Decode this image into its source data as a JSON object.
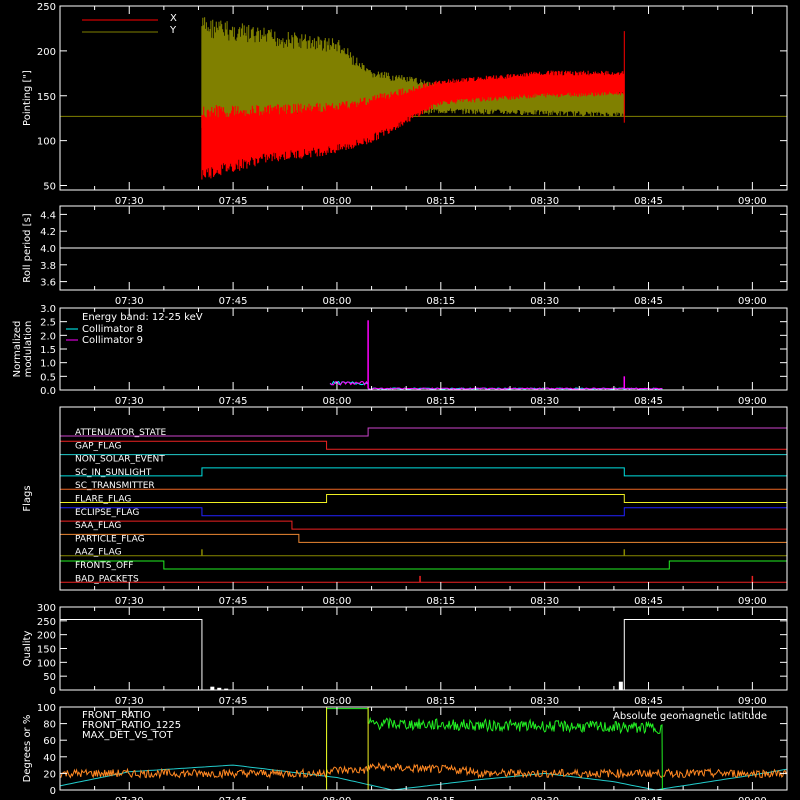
{
  "chart_data": [
    {
      "type": "line",
      "id": "pointing",
      "ylabel": "Pointing [\"]",
      "ylim": [
        45,
        250
      ],
      "yticks": [
        50,
        100,
        150,
        200,
        250
      ],
      "xticks": [
        "07:30",
        "07:45",
        "08:00",
        "08:15",
        "08:30",
        "08:45",
        "09:00"
      ],
      "xlim": [
        "07:20",
        "09:05"
      ],
      "legend": [
        "X",
        "Y"
      ],
      "series": [
        {
          "name": "X",
          "color": "#ff0000",
          "envelope": {
            "t": [
              "07:40.5",
              "07:50",
              "08:00",
              "08:04.5",
              "08:15",
              "08:30",
              "08:41.5"
            ],
            "upper": [
              140,
              140,
              143,
              150,
              168,
              178,
              178
            ],
            "lower": [
              55,
              75,
              85,
              95,
              140,
              148,
              150
            ]
          }
        },
        {
          "name": "Y",
          "color": "#808000",
          "envelope": {
            "t": [
              "07:40.5",
              "07:50",
              "08:00",
              "08:04.5",
              "08:15",
              "08:30",
              "08:41.5"
            ],
            "upper": [
              240,
              225,
              215,
              180,
              165,
              160,
              158
            ],
            "lower": [
              100,
              110,
              118,
              125,
              130,
              128,
              126
            ]
          }
        }
      ],
      "baseline": 127
    },
    {
      "type": "line",
      "id": "roll",
      "ylabel": "Roll period [s]",
      "ylim": [
        3.5,
        4.5
      ],
      "yticks": [
        "3.6",
        "3.8",
        "4.0",
        "4.2",
        "4.4"
      ],
      "xticks": [
        "07:30",
        "07:45",
        "08:00",
        "08:15",
        "08:30",
        "08:45",
        "09:00"
      ],
      "series": [
        {
          "name": "",
          "color": "#ffffff",
          "value": 4.0
        }
      ]
    },
    {
      "type": "line",
      "id": "modulation",
      "ylabel": [
        "Normalized",
        "modulation"
      ],
      "ylim": [
        0,
        3.0
      ],
      "yticks": [
        "0.0",
        "0.5",
        "1.0",
        "1.5",
        "2.0",
        "2.5",
        "3.0"
      ],
      "xticks": [
        "07:30",
        "07:45",
        "08:00",
        "08:15",
        "08:30",
        "08:45",
        "09:00"
      ],
      "legend_title": "Energy band: 12-25 keV",
      "series": [
        {
          "name": "Collimator 8",
          "color": "#00ffff"
        },
        {
          "name": "Collimator 9",
          "color": "#ff00ff"
        }
      ],
      "segments": [
        {
          "t0": "07:59",
          "t1": "08:04.5",
          "level": 0.25
        },
        {
          "t0": "08:04.5",
          "t1": "08:47",
          "level": 0.05
        }
      ],
      "spikes": [
        {
          "t": "08:04.5",
          "value": 2.55
        },
        {
          "t": "08:41.5",
          "value": 0.5
        }
      ]
    },
    {
      "type": "line",
      "id": "flags",
      "ylabel": "Flags",
      "xticks": [
        "07:30",
        "07:45",
        "08:00",
        "08:15",
        "08:30",
        "08:45",
        "09:00"
      ],
      "flags": [
        {
          "name": "ATTENUATOR_STATE",
          "color": "#cc44cc",
          "steps": [
            [
              "07:20",
              0
            ],
            [
              "08:04.5",
              1
            ]
          ]
        },
        {
          "name": "GAP_FLAG",
          "color": "#ee2222",
          "steps": [
            [
              "07:20",
              1
            ],
            [
              "07:58.5",
              0
            ]
          ]
        },
        {
          "name": "NON_SOLAR_EVENT",
          "color": "#22cccc",
          "steps": [
            [
              "07:20",
              1
            ]
          ]
        },
        {
          "name": "SC_IN_SUNLIGHT",
          "color": "#00e0e0",
          "steps": [
            [
              "07:20",
              0
            ],
            [
              "07:40.5",
              1
            ],
            [
              "08:41.5",
              0
            ]
          ]
        },
        {
          "name": "SC_TRANSMITTER",
          "color": "#ee6622",
          "steps": [
            [
              "07:20",
              0
            ]
          ]
        },
        {
          "name": "FLARE_FLAG",
          "color": "#eeee22",
          "steps": [
            [
              "07:20",
              0
            ],
            [
              "07:58.5",
              1
            ],
            [
              "08:41.5",
              0
            ]
          ]
        },
        {
          "name": "ECLIPSE_FLAG",
          "color": "#2222ff",
          "steps": [
            [
              "07:20",
              1
            ],
            [
              "07:40.5",
              0
            ],
            [
              "08:41.5",
              1
            ]
          ]
        },
        {
          "name": "SAA_FLAG",
          "color": "#ee2222",
          "steps": [
            [
              "07:20",
              1
            ],
            [
              "07:53.5",
              0
            ]
          ]
        },
        {
          "name": "PARTICLE_FLAG",
          "color": "#ee8833",
          "steps": [
            [
              "07:20",
              1
            ],
            [
              "07:54.5",
              0
            ]
          ]
        },
        {
          "name": "AAZ_FLAG",
          "color": "#888800",
          "steps": [
            [
              "07:20",
              0
            ]
          ],
          "blips": [
            "07:40.5",
            "08:41.5"
          ]
        },
        {
          "name": "FRONTS_OFF",
          "color": "#22ee22",
          "steps": [
            [
              "07:20",
              1
            ],
            [
              "07:35",
              0
            ],
            [
              "08:48",
              1
            ]
          ]
        },
        {
          "name": "BAD_PACKETS",
          "color": "#ee2222",
          "steps": [
            [
              "07:20",
              0
            ]
          ],
          "blips": [
            "08:12",
            "09:00"
          ]
        }
      ]
    },
    {
      "type": "line",
      "id": "quality",
      "ylabel": "Quality",
      "ylim": [
        0,
        300
      ],
      "yticks": [
        0,
        50,
        100,
        150,
        200,
        250,
        300
      ],
      "xticks": [
        "07:30",
        "07:45",
        "08:00",
        "08:15",
        "08:30",
        "08:45",
        "09:00"
      ],
      "series": [
        {
          "name": "",
          "color": "#ffffff",
          "steps": [
            [
              "07:20",
              255
            ],
            [
              "07:40.5",
              0
            ],
            [
              "08:41.5",
              255
            ]
          ]
        }
      ]
    },
    {
      "type": "line",
      "id": "ratios",
      "ylabel": "Degrees or %",
      "ylim": [
        0,
        100
      ],
      "yticks": [
        0,
        20,
        40,
        60,
        80,
        100
      ],
      "xticks": [
        "07:30",
        "07:45",
        "08:00",
        "08:15",
        "08:30",
        "08:45",
        "09:00"
      ],
      "annotation": "Absolute geomagnetic latitude",
      "series": [
        {
          "name": "FRONT_RATIO",
          "color": "#eeee22",
          "steps": [
            [
              "07:20",
              0
            ],
            [
              "07:58.5",
              100
            ],
            [
              "08:04.5",
              0
            ]
          ]
        },
        {
          "name": "FRONT_RATIO_1225",
          "color": "#22ee22",
          "steps": [
            [
              "07:20",
              0
            ],
            [
              "07:58.5",
              98
            ],
            [
              "08:04.5",
              80
            ],
            [
              "08:47",
              0
            ]
          ]
        },
        {
          "name": "MAX_DET_VS_TOT",
          "color": "#ff8822",
          "level": 22
        },
        {
          "name": "latitude",
          "color": "#22cccc",
          "points": [
            [
              "07:20",
              5
            ],
            [
              "07:30",
              22
            ],
            [
              "07:45",
              30
            ],
            [
              "08:00",
              15
            ],
            [
              "08:08",
              0
            ],
            [
              "08:20",
              12
            ],
            [
              "08:30",
              20
            ],
            [
              "08:40",
              10
            ],
            [
              "08:46",
              0
            ],
            [
              "09:00",
              18
            ],
            [
              "09:05",
              25
            ]
          ]
        }
      ]
    }
  ]
}
